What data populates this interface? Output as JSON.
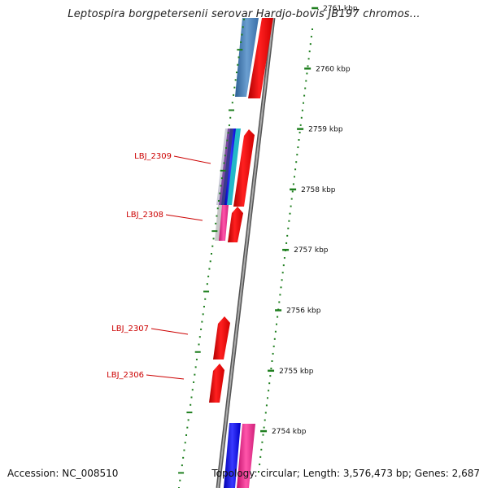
{
  "header": {
    "title": "Leptospira borgpetersenii serovar Hardjo-bovis JB197 chromos..."
  },
  "footer": {
    "accession": "Accession: NC_008510",
    "topology": "Topology: circular; Length: 3,576,473 bp; Genes: 2,687"
  },
  "ruler": {
    "ticks": [
      {
        "label": "2761 kbp",
        "kbp": 2761
      },
      {
        "label": "2760 kbp",
        "kbp": 2760
      },
      {
        "label": "2759 kbp",
        "kbp": 2759
      },
      {
        "label": "2758 kbp",
        "kbp": 2758
      },
      {
        "label": "2757 kbp",
        "kbp": 2757
      },
      {
        "label": "2756 kbp",
        "kbp": 2756
      },
      {
        "label": "2755 kbp",
        "kbp": 2755
      },
      {
        "label": "2754 kbp",
        "kbp": 2754
      }
    ]
  },
  "gene_labels": [
    {
      "text": "LBJ_2309"
    },
    {
      "text": "LBJ_2308"
    },
    {
      "text": "LBJ_2307"
    },
    {
      "text": "LBJ_2306"
    }
  ],
  "colors": {
    "forward_cds": "#ff0000",
    "reverse_cds": "#4a7ebb",
    "backbone": "#808080",
    "tick": "#1f7f1f",
    "label": "#cc0000",
    "blue": "#1a1aff",
    "magenta": "#ff3399",
    "cyan": "#22b8c8",
    "navy": "#3a3a8a"
  }
}
